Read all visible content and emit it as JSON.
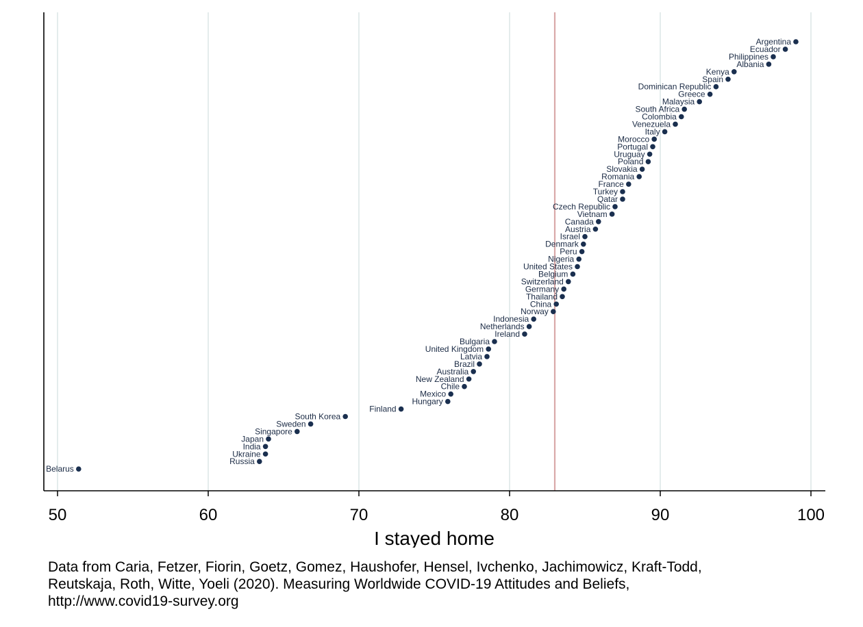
{
  "chart_data": {
    "type": "scatter",
    "title": "",
    "xlabel": "I stayed home",
    "ylabel": "",
    "xlim": [
      50,
      100
    ],
    "xticks": [
      "50",
      "60",
      "70",
      "80",
      "90",
      "100"
    ],
    "grid": "vertical",
    "reference_line_x": 83,
    "colors": {
      "point": "#1a2f4f",
      "grid": "#e4ecec",
      "reference_line": "#d9a9a9",
      "axis": "#000000"
    },
    "points": [
      {
        "country": "Argentina",
        "value": 99.0
      },
      {
        "country": "Ecuador",
        "value": 98.3
      },
      {
        "country": "Philippines",
        "value": 97.5
      },
      {
        "country": "Albania",
        "value": 97.2
      },
      {
        "country": "Kenya",
        "value": 94.9
      },
      {
        "country": "Spain",
        "value": 94.5
      },
      {
        "country": "Dominican Republic",
        "value": 93.7
      },
      {
        "country": "Greece",
        "value": 93.3
      },
      {
        "country": "Malaysia",
        "value": 92.6
      },
      {
        "country": "South Africa",
        "value": 91.6
      },
      {
        "country": "Colombia",
        "value": 91.4
      },
      {
        "country": "Venezuela",
        "value": 91.0
      },
      {
        "country": "Italy",
        "value": 90.3
      },
      {
        "country": "Morocco",
        "value": 89.6
      },
      {
        "country": "Portugal",
        "value": 89.5
      },
      {
        "country": "Uruguay",
        "value": 89.3
      },
      {
        "country": "Poland",
        "value": 89.2
      },
      {
        "country": "Slovakia",
        "value": 88.8
      },
      {
        "country": "Romania",
        "value": 88.6
      },
      {
        "country": "France",
        "value": 87.9
      },
      {
        "country": "Turkey",
        "value": 87.5
      },
      {
        "country": "Qatar",
        "value": 87.5
      },
      {
        "country": "Czech Republic",
        "value": 87.0
      },
      {
        "country": "Vietnam",
        "value": 86.8
      },
      {
        "country": "Canada",
        "value": 85.9
      },
      {
        "country": "Austria",
        "value": 85.7
      },
      {
        "country": "Israel",
        "value": 85.0
      },
      {
        "country": "Denmark",
        "value": 84.9
      },
      {
        "country": "Peru",
        "value": 84.8
      },
      {
        "country": "Nigeria",
        "value": 84.6
      },
      {
        "country": "United States",
        "value": 84.5
      },
      {
        "country": "Belgium",
        "value": 84.2
      },
      {
        "country": "Switzerland",
        "value": 83.9
      },
      {
        "country": "Germany",
        "value": 83.6
      },
      {
        "country": "Thailand",
        "value": 83.5
      },
      {
        "country": "China",
        "value": 83.1
      },
      {
        "country": "Norway",
        "value": 82.9
      },
      {
        "country": "Indonesia",
        "value": 81.6
      },
      {
        "country": "Netherlands",
        "value": 81.3
      },
      {
        "country": "Ireland",
        "value": 81.0
      },
      {
        "country": "Bulgaria",
        "value": 79.0
      },
      {
        "country": "United Kingdom",
        "value": 78.6
      },
      {
        "country": "Latvia",
        "value": 78.5
      },
      {
        "country": "Brazil",
        "value": 78.0
      },
      {
        "country": "Australia",
        "value": 77.6
      },
      {
        "country": "New Zealand",
        "value": 77.3
      },
      {
        "country": "Chile",
        "value": 77.0
      },
      {
        "country": "Mexico",
        "value": 76.1
      },
      {
        "country": "Hungary",
        "value": 75.9
      },
      {
        "country": "Finland",
        "value": 72.8
      },
      {
        "country": "South Korea",
        "value": 69.1
      },
      {
        "country": "Sweden",
        "value": 66.8
      },
      {
        "country": "Singapore",
        "value": 65.9
      },
      {
        "country": "Japan",
        "value": 64.0
      },
      {
        "country": "India",
        "value": 63.8
      },
      {
        "country": "Ukraine",
        "value": 63.8
      },
      {
        "country": "Russia",
        "value": 63.4
      },
      {
        "country": "Belarus",
        "value": 51.4
      }
    ]
  },
  "source_note": {
    "line1": "Data from Caria, Fetzer, Fiorin, Goetz, Gomez, Haushofer, Hensel, Ivchenko, Jachimowicz, Kraft-Todd,",
    "line2": "Reutskaja, Roth, Witte, Yoeli (2020). Measuring Worldwide COVID-19 Attitudes and Beliefs,",
    "line3": "http://www.covid19-survey.org"
  }
}
